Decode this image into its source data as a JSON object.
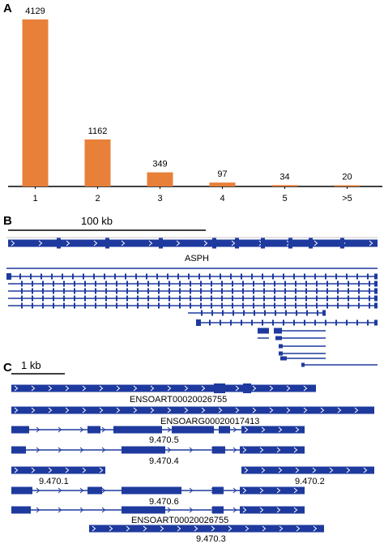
{
  "panels": {
    "a": {
      "letter": "A"
    },
    "b": {
      "letter": "B",
      "scale_label": "100 kb",
      "gene_label": "ASPH"
    },
    "c": {
      "letter": "C",
      "scale_label": "1 kb"
    }
  },
  "colors": {
    "bar": "#E8803A",
    "track": "#1E3A9E",
    "axis": "#000000"
  },
  "chart_data": {
    "type": "bar",
    "categories": [
      "1",
      "2",
      "3",
      "4",
      "5",
      ">5"
    ],
    "values": [
      4129,
      1162,
      349,
      97,
      34,
      20
    ],
    "data_labels": [
      "4129",
      "1162",
      "349",
      "97",
      "34",
      "20"
    ],
    "title": "",
    "xlabel": "",
    "ylabel": "",
    "ylim": [
      0,
      4129
    ]
  },
  "panel_c_labels": [
    "ENSOART00020026755",
    "ENSOARG00020017413",
    "9.470.5",
    "9.470.4",
    "9.470.1",
    "9.470.2",
    "9.470.6",
    "ENSOART00020026755",
    "9.470.3"
  ]
}
